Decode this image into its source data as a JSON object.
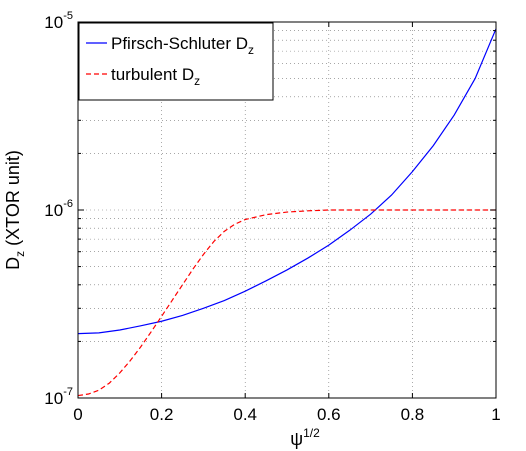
{
  "chart_data": {
    "type": "line",
    "title": "",
    "xlabel": "ψ",
    "xlabel_sup": "1/2",
    "ylabel": "D",
    "ylabel_sub": "z",
    "ylabel_suffix": " (XTOR unit)",
    "xlim": [
      0,
      1
    ],
    "ylim": [
      1e-07,
      1e-05
    ],
    "yscale": "log",
    "grid": "dotted",
    "legend_position": "top-left",
    "xticks": [
      "0",
      "0.2",
      "0.4",
      "0.6",
      "0.8",
      "1"
    ],
    "xtick_values": [
      0,
      0.2,
      0.4,
      0.6,
      0.8,
      1
    ],
    "yticks": [
      {
        "base": "10",
        "exp": "-7",
        "value": 1e-07
      },
      {
        "base": "10",
        "exp": "-6",
        "value": 1e-06
      },
      {
        "base": "10",
        "exp": "-5",
        "value": 1e-05
      }
    ],
    "series": [
      {
        "name": "Pfirsch-Schluter D",
        "name_sub": "z",
        "color": "#0000ff",
        "dash": "solid",
        "x": [
          0,
          0.05,
          0.1,
          0.15,
          0.2,
          0.25,
          0.3,
          0.35,
          0.4,
          0.45,
          0.5,
          0.55,
          0.6,
          0.65,
          0.7,
          0.75,
          0.8,
          0.85,
          0.9,
          0.95,
          1.0
        ],
        "y": [
          2.2e-07,
          2.22e-07,
          2.3e-07,
          2.42e-07,
          2.56e-07,
          2.75e-07,
          3e-07,
          3.3e-07,
          3.7e-07,
          4.2e-07,
          4.8e-07,
          5.55e-07,
          6.5e-07,
          7.8e-07,
          9.5e-07,
          1.2e-06,
          1.6e-06,
          2.2e-06,
          3.2e-06,
          5e-06,
          9.2e-06
        ]
      },
      {
        "name": "turbulent D",
        "name_sub": "z",
        "color": "#ff0000",
        "dash": "dashed",
        "x": [
          0,
          0.025,
          0.05,
          0.075,
          0.1,
          0.125,
          0.15,
          0.175,
          0.2,
          0.225,
          0.25,
          0.275,
          0.3,
          0.325,
          0.35,
          0.375,
          0.4,
          0.45,
          0.5,
          0.55,
          0.6,
          0.7,
          0.8,
          0.9,
          1.0
        ],
        "y": [
          1.03e-07,
          1.05e-07,
          1.1e-07,
          1.2e-07,
          1.36e-07,
          1.58e-07,
          1.87e-07,
          2.25e-07,
          2.72e-07,
          3.3e-07,
          4e-07,
          4.85e-07,
          5.8e-07,
          6.8e-07,
          7.7e-07,
          8.4e-07,
          8.9e-07,
          9.45e-07,
          9.75e-07,
          9.9e-07,
          1e-06,
          1e-06,
          1e-06,
          1e-06,
          1e-06
        ]
      }
    ]
  }
}
